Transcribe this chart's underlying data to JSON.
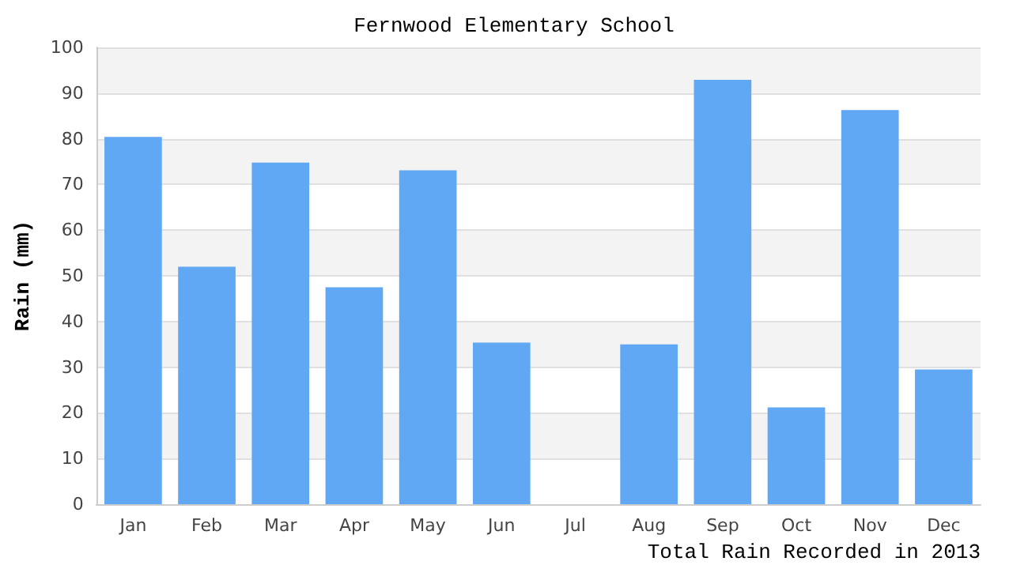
{
  "chart_data": {
    "type": "bar",
    "title": "Fernwood Elementary School",
    "xlabel": "Total Rain Recorded in 2013",
    "ylabel": "Rain (mm)",
    "categories": [
      "Jan",
      "Feb",
      "Mar",
      "Apr",
      "May",
      "Jun",
      "Jul",
      "Aug",
      "Sep",
      "Oct",
      "Nov",
      "Dec"
    ],
    "values": [
      80.4,
      52,
      74.8,
      47.5,
      73.1,
      35.4,
      0,
      35,
      92.9,
      21.2,
      86.3,
      29.5
    ],
    "color": "#60a8f4",
    "ylim": [
      0,
      100
    ],
    "yticks": [
      0,
      10,
      20,
      30,
      40,
      50,
      60,
      70,
      80,
      90,
      100
    ],
    "grid": "y"
  }
}
